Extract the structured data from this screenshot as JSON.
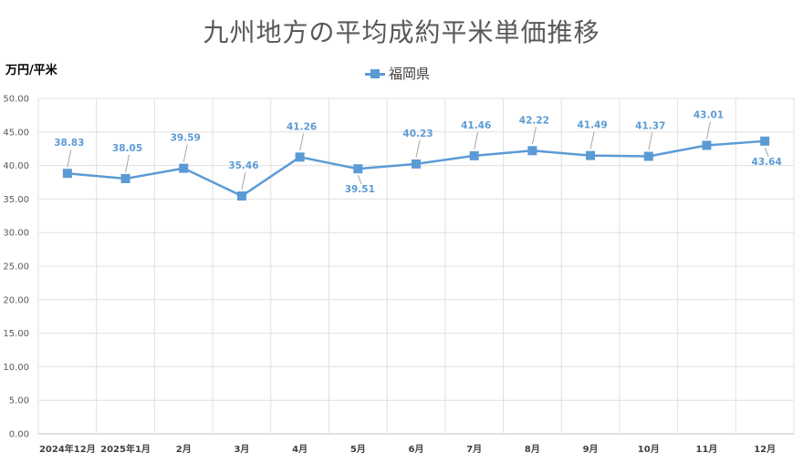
{
  "chart_data": {
    "type": "line",
    "title": "九州地方の平均成約平米単価推移",
    "ylabel": "万円/平米",
    "xlabel": "",
    "ylim": [
      0,
      50
    ],
    "yticks": [
      "0.00",
      "5.00",
      "10.00",
      "15.00",
      "20.00",
      "25.00",
      "30.00",
      "35.00",
      "40.00",
      "45.00",
      "50.00"
    ],
    "categories": [
      "2024年12月",
      "2025年1月",
      "2月",
      "3月",
      "4月",
      "5月",
      "6月",
      "7月",
      "8月",
      "9月",
      "10月",
      "11月",
      "12月"
    ],
    "series": [
      {
        "name": "福岡県",
        "color": "#5B9BD5",
        "values": [
          38.83,
          38.05,
          39.59,
          35.46,
          41.26,
          39.51,
          40.23,
          41.46,
          42.22,
          41.49,
          41.37,
          43.01,
          43.64
        ],
        "labels": [
          "38.83",
          "38.05",
          "39.59",
          "35.46",
          "41.26",
          "39.51",
          "40.23",
          "41.46",
          "42.22",
          "41.49",
          "41.37",
          "43.01",
          "43.64"
        ],
        "label_positions": [
          "above",
          "above",
          "above",
          "above",
          "above",
          "below",
          "above",
          "above",
          "above",
          "above",
          "above",
          "above",
          "below"
        ]
      }
    ],
    "legend": "top",
    "grid": true
  }
}
